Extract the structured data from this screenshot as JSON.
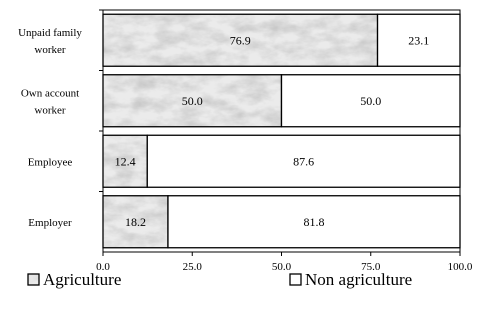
{
  "chart_data": {
    "type": "bar",
    "orientation": "horizontal",
    "stacked": true,
    "categories": [
      "Unpaid family worker",
      "Own account worker",
      "Employee",
      "Employer"
    ],
    "category_label_lines": [
      [
        "Unpaid family",
        "worker"
      ],
      [
        "Own account",
        "worker"
      ],
      [
        "Employee"
      ],
      [
        "Employer"
      ]
    ],
    "series": [
      {
        "name": "Agriculture",
        "values": [
          76.9,
          50.0,
          12.4,
          18.2
        ],
        "value_labels": [
          "76.9",
          "50.0",
          "12.4",
          "18.2"
        ],
        "fill": "marble-gray"
      },
      {
        "name": "Non agriculture",
        "values": [
          23.1,
          50.0,
          87.6,
          81.8
        ],
        "value_labels": [
          "23.1",
          "50.0",
          "87.6",
          "81.8"
        ],
        "fill": "#ffffff"
      }
    ],
    "xlim": [
      0,
      100
    ],
    "xticks": [
      0,
      25,
      50,
      75,
      100
    ],
    "xtick_labels": [
      "0.0",
      "25.0",
      "50.0",
      "75.0",
      "100.0"
    ],
    "xlabel": "",
    "ylabel": "",
    "title": "",
    "grid": false,
    "legend_position": "bottom"
  }
}
